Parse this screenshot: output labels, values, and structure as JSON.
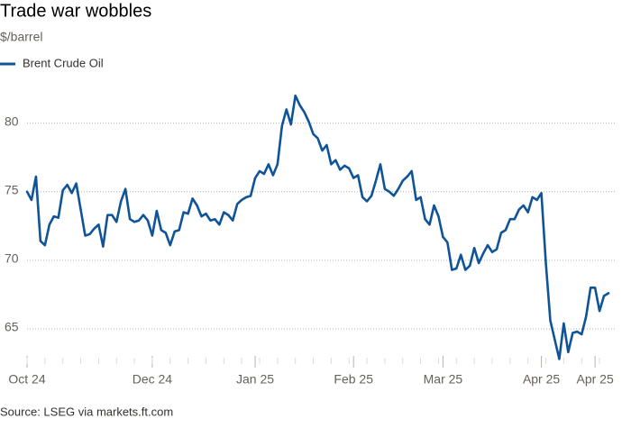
{
  "chart_data": {
    "type": "line",
    "title": "Trade war wobbles",
    "subtitle": "$/barrel",
    "source": "Source: LSEG via markets.ft.com",
    "ylim": [
      62.5,
      83
    ],
    "yticks": [
      65,
      70,
      75,
      80
    ],
    "grid": true,
    "legend": "top-left",
    "categories": [
      "Oct 24",
      null,
      null,
      null,
      null,
      null,
      null,
      null,
      null,
      null,
      null,
      null,
      null,
      null,
      null,
      null,
      null,
      null,
      null,
      null,
      null,
      null,
      null,
      null,
      null,
      null,
      null,
      null,
      "Dec 24",
      null,
      null,
      null,
      null,
      null,
      null,
      null,
      null,
      null,
      null,
      null,
      null,
      null,
      null,
      null,
      null,
      null,
      null,
      null,
      null,
      null,
      null,
      "Jan 25",
      null,
      null,
      null,
      null,
      null,
      null,
      null,
      null,
      null,
      null,
      null,
      null,
      null,
      null,
      null,
      null,
      null,
      null,
      null,
      null,
      null,
      "Feb 25",
      null,
      null,
      null,
      null,
      null,
      null,
      null,
      null,
      null,
      null,
      null,
      null,
      null,
      null,
      null,
      null,
      null,
      null,
      null,
      "Mar 25",
      null,
      null,
      null,
      null,
      null,
      null,
      null,
      null,
      null,
      null,
      null,
      null,
      null,
      null,
      null,
      null,
      null,
      null,
      null,
      null,
      null,
      "Apr 25",
      null,
      null,
      null,
      null,
      null,
      null,
      null,
      null,
      null,
      null,
      null,
      "Apr 25",
      null,
      null,
      null
    ],
    "series": [
      {
        "name": "Brent Crude Oil",
        "color": "#0f5499",
        "values": [
          75.0,
          74.4,
          76.1,
          71.4,
          71.1,
          72.6,
          73.2,
          73.1,
          75.1,
          75.5,
          74.9,
          75.6,
          73.7,
          71.8,
          71.9,
          72.3,
          72.6,
          71.0,
          73.3,
          73.3,
          72.8,
          74.3,
          75.2,
          73.0,
          72.8,
          72.9,
          73.3,
          72.9,
          71.8,
          73.6,
          72.2,
          72.0,
          71.1,
          72.1,
          72.2,
          73.5,
          73.4,
          74.5,
          74.0,
          73.2,
          73.4,
          72.9,
          73.0,
          72.6,
          73.5,
          73.3,
          72.9,
          74.1,
          74.4,
          74.6,
          74.7,
          76.0,
          76.5,
          76.3,
          77.0,
          76.2,
          77.0,
          79.8,
          81.0,
          79.9,
          82.0,
          81.3,
          80.8,
          80.1,
          79.2,
          78.9,
          78.0,
          78.4,
          77.0,
          77.3,
          76.6,
          76.9,
          76.7,
          76.0,
          76.2,
          74.6,
          74.3,
          74.7,
          75.8,
          77.0,
          75.2,
          75.0,
          74.7,
          75.2,
          75.8,
          76.1,
          76.5,
          74.4,
          74.6,
          73.0,
          72.6,
          74.0,
          73.2,
          71.7,
          71.3,
          69.3,
          69.4,
          70.4,
          69.3,
          69.6,
          70.9,
          69.8,
          70.5,
          71.1,
          70.6,
          70.8,
          72.0,
          72.2,
          73.0,
          73.0,
          73.7,
          74.0,
          73.5,
          74.6,
          74.4,
          74.9,
          69.8,
          65.6,
          64.2,
          62.8,
          65.4,
          63.3,
          64.7,
          64.8,
          64.6,
          65.9,
          68.0,
          68.0,
          66.3,
          67.4,
          67.6
        ]
      }
    ]
  }
}
